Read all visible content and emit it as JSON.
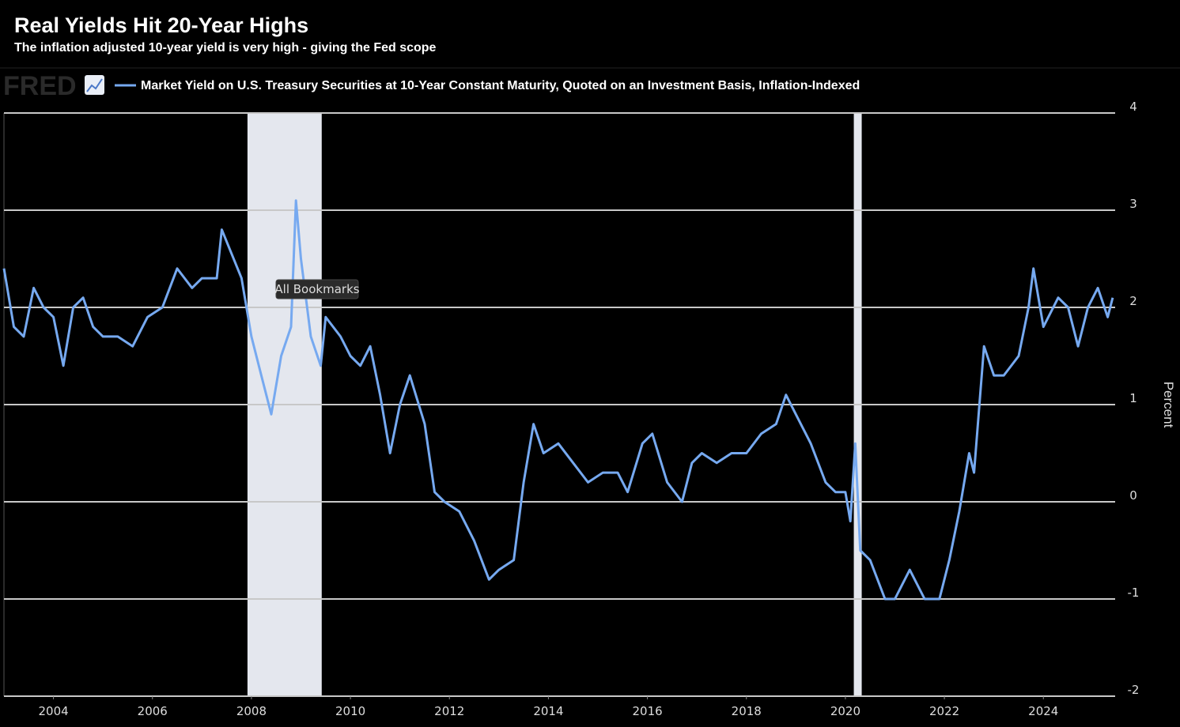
{
  "chart_data": {
    "type": "line",
    "title": "Real Yields Hit 20-Year Highs",
    "subtitle": "The inflation adjusted 10-year yield is very high - giving the Fed scope",
    "logo": "FRED",
    "tooltip": "All Bookmarks",
    "y_label": "Percent",
    "x": [
      2003.0,
      2003.2,
      2003.4,
      2003.6,
      2003.8,
      2004.0,
      2004.2,
      2004.4,
      2004.6,
      2004.8,
      2005.0,
      2005.3,
      2005.6,
      2005.9,
      2006.2,
      2006.5,
      2006.8,
      2007.0,
      2007.3,
      2007.4,
      2007.8,
      2008.0,
      2008.2,
      2008.4,
      2008.6,
      2008.8,
      2008.9,
      2009.0,
      2009.2,
      2009.4,
      2009.5,
      2009.8,
      2010.0,
      2010.2,
      2010.4,
      2010.6,
      2010.8,
      2011.0,
      2011.2,
      2011.5,
      2011.7,
      2011.9,
      2012.2,
      2012.5,
      2012.8,
      2013.0,
      2013.3,
      2013.5,
      2013.7,
      2013.9,
      2014.2,
      2014.5,
      2014.8,
      2015.1,
      2015.4,
      2015.6,
      2015.9,
      2016.1,
      2016.4,
      2016.7,
      2016.9,
      2017.1,
      2017.4,
      2017.7,
      2018.0,
      2018.3,
      2018.6,
      2018.8,
      2019.0,
      2019.3,
      2019.6,
      2019.8,
      2020.0,
      2020.1,
      2020.2,
      2020.3,
      2020.5,
      2020.8,
      2021.0,
      2021.3,
      2021.6,
      2021.9,
      2022.1,
      2022.3,
      2022.5,
      2022.6,
      2022.8,
      2023.0,
      2023.2,
      2023.5,
      2023.7,
      2023.8,
      2024.0,
      2024.3,
      2024.5,
      2024.7,
      2024.9,
      2025.1,
      2025.3,
      2025.4
    ],
    "series": [
      {
        "name": "Market Yield on U.S. Treasury Securities at 10-Year Constant Maturity, Quoted on an Investment Basis, Inflation-Indexed",
        "color": "#76a9f0",
        "values": [
          2.4,
          1.8,
          1.7,
          2.2,
          2.0,
          1.9,
          1.4,
          2.0,
          2.1,
          1.8,
          1.7,
          1.7,
          1.6,
          1.9,
          2.0,
          2.4,
          2.2,
          2.3,
          2.3,
          2.8,
          2.3,
          1.7,
          1.3,
          0.9,
          1.5,
          1.8,
          3.1,
          2.5,
          1.7,
          1.4,
          1.9,
          1.7,
          1.5,
          1.4,
          1.6,
          1.1,
          0.5,
          1.0,
          1.3,
          0.8,
          0.1,
          0.0,
          -0.1,
          -0.4,
          -0.8,
          -0.7,
          -0.6,
          0.2,
          0.8,
          0.5,
          0.6,
          0.4,
          0.2,
          0.3,
          0.3,
          0.1,
          0.6,
          0.7,
          0.2,
          0.0,
          0.4,
          0.5,
          0.4,
          0.5,
          0.5,
          0.7,
          0.8,
          1.1,
          0.9,
          0.6,
          0.2,
          0.1,
          0.1,
          -0.2,
          0.6,
          -0.5,
          -0.6,
          -1.0,
          -1.0,
          -0.7,
          -1.0,
          -1.0,
          -0.6,
          -0.1,
          0.5,
          0.3,
          1.6,
          1.3,
          1.3,
          1.5,
          2.0,
          2.4,
          1.8,
          2.1,
          2.0,
          1.6,
          2.0,
          2.2,
          1.9,
          2.1
        ]
      }
    ],
    "recessions": [
      [
        2007.92,
        2009.42
      ],
      [
        2020.17,
        2020.33
      ]
    ],
    "recession_color": "#e4e7ee",
    "xlim": [
      2003.0,
      2025.45
    ],
    "xticks": [
      2004,
      2006,
      2008,
      2010,
      2012,
      2014,
      2016,
      2018,
      2020,
      2022,
      2024
    ],
    "ylim": [
      -2,
      4
    ],
    "yticks": [
      -2,
      -1,
      0,
      1,
      2,
      3,
      4
    ],
    "grid": true
  }
}
